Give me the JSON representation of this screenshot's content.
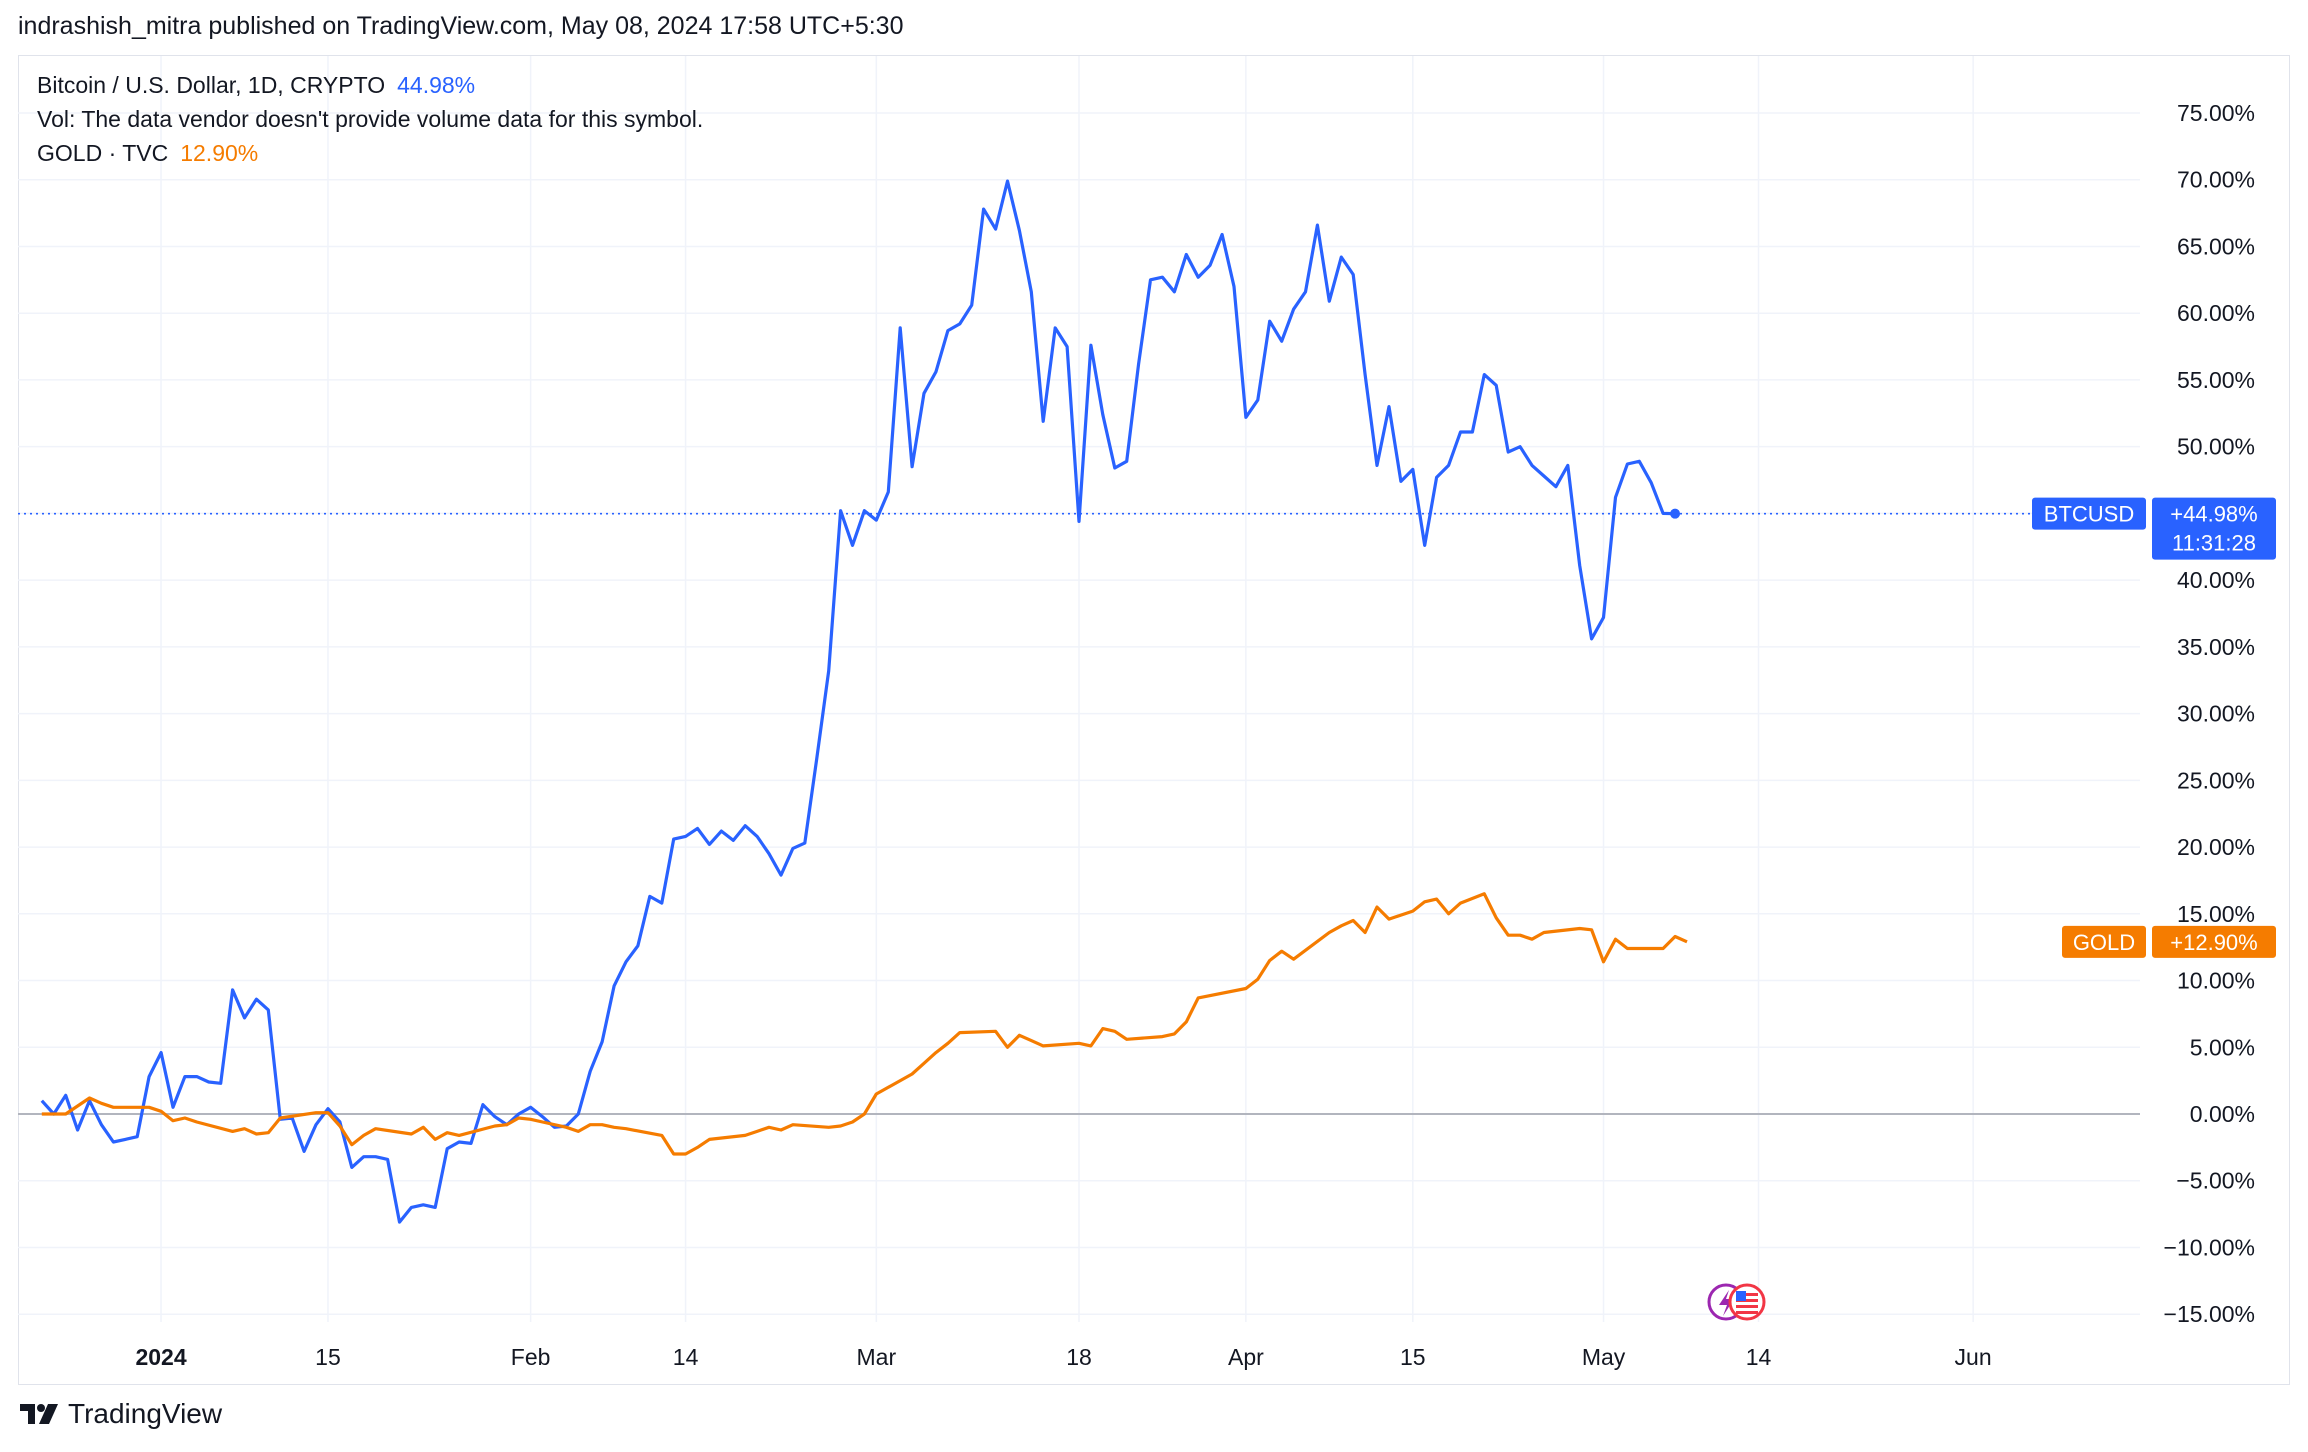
{
  "header": {
    "publish_text": "indrashish_mitra published on TradingView.com, May 08, 2024 17:58 UTC+5:30"
  },
  "legend": {
    "btc_name": "Bitcoin / U.S. Dollar, 1D, CRYPTO",
    "btc_value": "44.98%",
    "vol_text": "Vol: The data vendor doesn't provide volume data for this symbol.",
    "gold_name": "GOLD · TVC",
    "gold_value": "12.90%"
  },
  "badges": {
    "btc_symbol": "BTCUSD",
    "btc_value": "+44.98%",
    "btc_countdown": "11:31:28",
    "gold_symbol": "GOLD",
    "gold_value": "+12.90%"
  },
  "footer": {
    "brand": "TradingView"
  },
  "colors": {
    "btc": "#2962ff",
    "gold": "#f57c00",
    "grid": "#f0f3fa",
    "zero_line": "#b2b5be",
    "axis_text": "#131722"
  },
  "chart_data": {
    "type": "line",
    "title": "",
    "xlabel": "",
    "ylabel": "",
    "y_unit": "%",
    "ylim": [
      -15,
      78
    ],
    "xlim": [
      "2023-12-20",
      "2024-06-15"
    ],
    "y_ticks": [
      75,
      70,
      65,
      60,
      55,
      50,
      45,
      40,
      35,
      30,
      25,
      20,
      15,
      10,
      5,
      0,
      -5,
      -10,
      -15
    ],
    "y_tick_labels": [
      "75.00%",
      "70.00%",
      "65.00%",
      "60.00%",
      "55.00%",
      "50.00%",
      "45.00%",
      "40.00%",
      "35.00%",
      "30.00%",
      "25.00%",
      "20.00%",
      "15.00%",
      "10.00%",
      "5.00%",
      "0.00%",
      "−5.00%",
      "−10.00%",
      "−15.00%"
    ],
    "x_ticks": [
      {
        "date": "2024-01-01",
        "label": "2024",
        "bold": true
      },
      {
        "date": "2024-01-15",
        "label": "15",
        "bold": false
      },
      {
        "date": "2024-02-01",
        "label": "Feb",
        "bold": false
      },
      {
        "date": "2024-02-14",
        "label": "14",
        "bold": false
      },
      {
        "date": "2024-03-01",
        "label": "Mar",
        "bold": false
      },
      {
        "date": "2024-03-18",
        "label": "18",
        "bold": false
      },
      {
        "date": "2024-04-01",
        "label": "Apr",
        "bold": false
      },
      {
        "date": "2024-04-15",
        "label": "15",
        "bold": false
      },
      {
        "date": "2024-05-01",
        "label": "May",
        "bold": false
      },
      {
        "date": "2024-05-14",
        "label": "14",
        "bold": false
      },
      {
        "date": "2024-06-01",
        "label": "Jun",
        "bold": false
      }
    ],
    "grid": true,
    "series": [
      {
        "name": "BTCUSD",
        "color": "#2962ff",
        "points": [
          [
            "2023-12-22",
            1.0
          ],
          [
            "2023-12-23",
            0.0
          ],
          [
            "2023-12-24",
            1.4
          ],
          [
            "2023-12-25",
            -1.2
          ],
          [
            "2023-12-26",
            1.0
          ],
          [
            "2023-12-27",
            -0.8
          ],
          [
            "2023-12-28",
            -2.1
          ],
          [
            "2023-12-29",
            -1.9
          ],
          [
            "2023-12-30",
            -1.7
          ],
          [
            "2023-12-31",
            2.8
          ],
          [
            "2024-01-01",
            4.6
          ],
          [
            "2024-01-02",
            0.5
          ],
          [
            "2024-01-03",
            2.8
          ],
          [
            "2024-01-04",
            2.8
          ],
          [
            "2024-01-05",
            2.4
          ],
          [
            "2024-01-06",
            2.3
          ],
          [
            "2024-01-07",
            9.3
          ],
          [
            "2024-01-08",
            7.2
          ],
          [
            "2024-01-09",
            8.6
          ],
          [
            "2024-01-10",
            7.8
          ],
          [
            "2024-01-11",
            -0.4
          ],
          [
            "2024-01-12",
            -0.3
          ],
          [
            "2024-01-13",
            -2.8
          ],
          [
            "2024-01-14",
            -0.8
          ],
          [
            "2024-01-15",
            0.4
          ],
          [
            "2024-01-16",
            -0.6
          ],
          [
            "2024-01-17",
            -4.0
          ],
          [
            "2024-01-18",
            -3.2
          ],
          [
            "2024-01-19",
            -3.2
          ],
          [
            "2024-01-20",
            -3.4
          ],
          [
            "2024-01-21",
            -8.1
          ],
          [
            "2024-01-22",
            -7.0
          ],
          [
            "2024-01-23",
            -6.8
          ],
          [
            "2024-01-24",
            -7.0
          ],
          [
            "2024-01-25",
            -2.6
          ],
          [
            "2024-01-26",
            -2.1
          ],
          [
            "2024-01-27",
            -2.2
          ],
          [
            "2024-01-28",
            0.7
          ],
          [
            "2024-01-29",
            -0.2
          ],
          [
            "2024-01-30",
            -0.8
          ],
          [
            "2024-01-31",
            0.0
          ],
          [
            "2024-02-01",
            0.5
          ],
          [
            "2024-02-02",
            -0.2
          ],
          [
            "2024-02-03",
            -1.0
          ],
          [
            "2024-02-04",
            -0.9
          ],
          [
            "2024-02-05",
            0.0
          ],
          [
            "2024-02-06",
            3.2
          ],
          [
            "2024-02-07",
            5.4
          ],
          [
            "2024-02-08",
            9.6
          ],
          [
            "2024-02-09",
            11.4
          ],
          [
            "2024-02-10",
            12.6
          ],
          [
            "2024-02-11",
            16.3
          ],
          [
            "2024-02-12",
            15.8
          ],
          [
            "2024-02-13",
            20.6
          ],
          [
            "2024-02-14",
            20.8
          ],
          [
            "2024-02-15",
            21.4
          ],
          [
            "2024-02-16",
            20.2
          ],
          [
            "2024-02-17",
            21.2
          ],
          [
            "2024-02-18",
            20.5
          ],
          [
            "2024-02-19",
            21.6
          ],
          [
            "2024-02-20",
            20.8
          ],
          [
            "2024-02-21",
            19.5
          ],
          [
            "2024-02-22",
            17.9
          ],
          [
            "2024-02-23",
            19.9
          ],
          [
            "2024-02-24",
            20.3
          ],
          [
            "2024-02-25",
            26.6
          ],
          [
            "2024-02-26",
            33.2
          ],
          [
            "2024-02-27",
            45.2
          ],
          [
            "2024-02-28",
            42.6
          ],
          [
            "2024-02-29",
            45.2
          ],
          [
            "2024-03-01",
            44.5
          ],
          [
            "2024-03-02",
            46.6
          ],
          [
            "2024-03-03",
            58.9
          ],
          [
            "2024-03-04",
            48.5
          ],
          [
            "2024-03-05",
            54.0
          ],
          [
            "2024-03-06",
            55.6
          ],
          [
            "2024-03-07",
            58.7
          ],
          [
            "2024-03-08",
            59.2
          ],
          [
            "2024-03-09",
            60.6
          ],
          [
            "2024-03-10",
            67.8
          ],
          [
            "2024-03-11",
            66.3
          ],
          [
            "2024-03-12",
            69.9
          ],
          [
            "2024-03-13",
            66.2
          ],
          [
            "2024-03-14",
            61.6
          ],
          [
            "2024-03-15",
            51.9
          ],
          [
            "2024-03-16",
            58.9
          ],
          [
            "2024-03-17",
            57.5
          ],
          [
            "2024-03-18",
            44.4
          ],
          [
            "2024-03-19",
            57.6
          ],
          [
            "2024-03-20",
            52.4
          ],
          [
            "2024-03-21",
            48.4
          ],
          [
            "2024-03-22",
            48.9
          ],
          [
            "2024-03-23",
            56.2
          ],
          [
            "2024-03-24",
            62.5
          ],
          [
            "2024-03-25",
            62.7
          ],
          [
            "2024-03-26",
            61.6
          ],
          [
            "2024-03-27",
            64.4
          ],
          [
            "2024-03-28",
            62.7
          ],
          [
            "2024-03-29",
            63.6
          ],
          [
            "2024-03-30",
            65.9
          ],
          [
            "2024-03-31",
            62.0
          ],
          [
            "2024-04-01",
            52.2
          ],
          [
            "2024-04-02",
            53.5
          ],
          [
            "2024-04-03",
            59.4
          ],
          [
            "2024-04-04",
            57.9
          ],
          [
            "2024-04-05",
            60.3
          ],
          [
            "2024-04-06",
            61.6
          ],
          [
            "2024-04-07",
            66.6
          ],
          [
            "2024-04-08",
            60.9
          ],
          [
            "2024-04-09",
            64.2
          ],
          [
            "2024-04-10",
            62.9
          ],
          [
            "2024-04-11",
            55.4
          ],
          [
            "2024-04-12",
            48.6
          ],
          [
            "2024-04-13",
            53.0
          ],
          [
            "2024-04-14",
            47.4
          ],
          [
            "2024-04-15",
            48.3
          ],
          [
            "2024-04-16",
            42.6
          ],
          [
            "2024-04-17",
            47.7
          ],
          [
            "2024-04-18",
            48.6
          ],
          [
            "2024-04-19",
            51.1
          ],
          [
            "2024-04-20",
            51.1
          ],
          [
            "2024-04-21",
            55.4
          ],
          [
            "2024-04-22",
            54.6
          ],
          [
            "2024-04-23",
            49.6
          ],
          [
            "2024-04-24",
            50.0
          ],
          [
            "2024-04-25",
            48.6
          ],
          [
            "2024-04-26",
            47.8
          ],
          [
            "2024-04-27",
            47.0
          ],
          [
            "2024-04-28",
            48.6
          ],
          [
            "2024-04-29",
            41.1
          ],
          [
            "2024-04-30",
            35.6
          ],
          [
            "2024-05-01",
            37.2
          ],
          [
            "2024-05-02",
            46.2
          ],
          [
            "2024-05-03",
            48.7
          ],
          [
            "2024-05-04",
            48.9
          ],
          [
            "2024-05-05",
            47.3
          ],
          [
            "2024-05-06",
            45.0
          ],
          [
            "2024-05-07",
            44.98
          ]
        ]
      },
      {
        "name": "GOLD",
        "color": "#f57c00",
        "points": [
          [
            "2023-12-22",
            0.0
          ],
          [
            "2023-12-24",
            0.0
          ],
          [
            "2023-12-25",
            0.6
          ],
          [
            "2023-12-26",
            1.2
          ],
          [
            "2023-12-27",
            0.8
          ],
          [
            "2023-12-28",
            0.5
          ],
          [
            "2023-12-31",
            0.5
          ],
          [
            "2024-01-01",
            0.2
          ],
          [
            "2024-01-02",
            -0.5
          ],
          [
            "2024-01-03",
            -0.3
          ],
          [
            "2024-01-04",
            -0.6
          ],
          [
            "2024-01-07",
            -1.3
          ],
          [
            "2024-01-08",
            -1.1
          ],
          [
            "2024-01-09",
            -1.5
          ],
          [
            "2024-01-10",
            -1.4
          ],
          [
            "2024-01-11",
            -0.3
          ],
          [
            "2024-01-14",
            0.1
          ],
          [
            "2024-01-15",
            0.1
          ],
          [
            "2024-01-16",
            -0.9
          ],
          [
            "2024-01-17",
            -2.3
          ],
          [
            "2024-01-18",
            -1.6
          ],
          [
            "2024-01-19",
            -1.1
          ],
          [
            "2024-01-22",
            -1.5
          ],
          [
            "2024-01-23",
            -1.0
          ],
          [
            "2024-01-24",
            -1.9
          ],
          [
            "2024-01-25",
            -1.4
          ],
          [
            "2024-01-26",
            -1.6
          ],
          [
            "2024-01-29",
            -0.9
          ],
          [
            "2024-01-30",
            -0.8
          ],
          [
            "2024-01-31",
            -0.3
          ],
          [
            "2024-02-01",
            -0.4
          ],
          [
            "2024-02-02",
            -0.6
          ],
          [
            "2024-02-04",
            -1.0
          ],
          [
            "2024-02-05",
            -1.3
          ],
          [
            "2024-02-06",
            -0.8
          ],
          [
            "2024-02-07",
            -0.8
          ],
          [
            "2024-02-08",
            -1.0
          ],
          [
            "2024-02-09",
            -1.1
          ],
          [
            "2024-02-12",
            -1.6
          ],
          [
            "2024-02-13",
            -3.0
          ],
          [
            "2024-02-14",
            -3.0
          ],
          [
            "2024-02-15",
            -2.5
          ],
          [
            "2024-02-16",
            -1.9
          ],
          [
            "2024-02-19",
            -1.6
          ],
          [
            "2024-02-20",
            -1.3
          ],
          [
            "2024-02-21",
            -1.0
          ],
          [
            "2024-02-22",
            -1.2
          ],
          [
            "2024-02-23",
            -0.8
          ],
          [
            "2024-02-26",
            -1.0
          ],
          [
            "2024-02-27",
            -0.9
          ],
          [
            "2024-02-28",
            -0.6
          ],
          [
            "2024-02-29",
            0.0
          ],
          [
            "2024-03-01",
            1.5
          ],
          [
            "2024-03-04",
            3.0
          ],
          [
            "2024-03-05",
            3.8
          ],
          [
            "2024-03-06",
            4.6
          ],
          [
            "2024-03-07",
            5.3
          ],
          [
            "2024-03-08",
            6.1
          ],
          [
            "2024-03-11",
            6.2
          ],
          [
            "2024-03-12",
            5.0
          ],
          [
            "2024-03-13",
            5.9
          ],
          [
            "2024-03-14",
            5.5
          ],
          [
            "2024-03-15",
            5.1
          ],
          [
            "2024-03-18",
            5.3
          ],
          [
            "2024-03-19",
            5.1
          ],
          [
            "2024-03-20",
            6.4
          ],
          [
            "2024-03-21",
            6.2
          ],
          [
            "2024-03-22",
            5.6
          ],
          [
            "2024-03-25",
            5.8
          ],
          [
            "2024-03-26",
            6.0
          ],
          [
            "2024-03-27",
            6.9
          ],
          [
            "2024-03-28",
            8.7
          ],
          [
            "2024-04-01",
            9.4
          ],
          [
            "2024-04-02",
            10.1
          ],
          [
            "2024-04-03",
            11.5
          ],
          [
            "2024-04-04",
            12.2
          ],
          [
            "2024-04-05",
            11.6
          ],
          [
            "2024-04-08",
            13.6
          ],
          [
            "2024-04-09",
            14.1
          ],
          [
            "2024-04-10",
            14.5
          ],
          [
            "2024-04-11",
            13.6
          ],
          [
            "2024-04-12",
            15.5
          ],
          [
            "2024-04-13",
            14.6
          ],
          [
            "2024-04-15",
            15.2
          ],
          [
            "2024-04-16",
            15.9
          ],
          [
            "2024-04-17",
            16.1
          ],
          [
            "2024-04-18",
            15.0
          ],
          [
            "2024-04-19",
            15.8
          ],
          [
            "2024-04-21",
            16.5
          ],
          [
            "2024-04-22",
            14.7
          ],
          [
            "2024-04-23",
            13.4
          ],
          [
            "2024-04-24",
            13.4
          ],
          [
            "2024-04-25",
            13.1
          ],
          [
            "2024-04-26",
            13.6
          ],
          [
            "2024-04-29",
            13.9
          ],
          [
            "2024-04-30",
            13.8
          ],
          [
            "2024-05-01",
            11.4
          ],
          [
            "2024-05-02",
            13.1
          ],
          [
            "2024-05-03",
            12.4
          ],
          [
            "2024-05-06",
            12.4
          ],
          [
            "2024-05-07",
            13.3
          ],
          [
            "2024-05-08",
            12.9
          ]
        ]
      }
    ]
  }
}
